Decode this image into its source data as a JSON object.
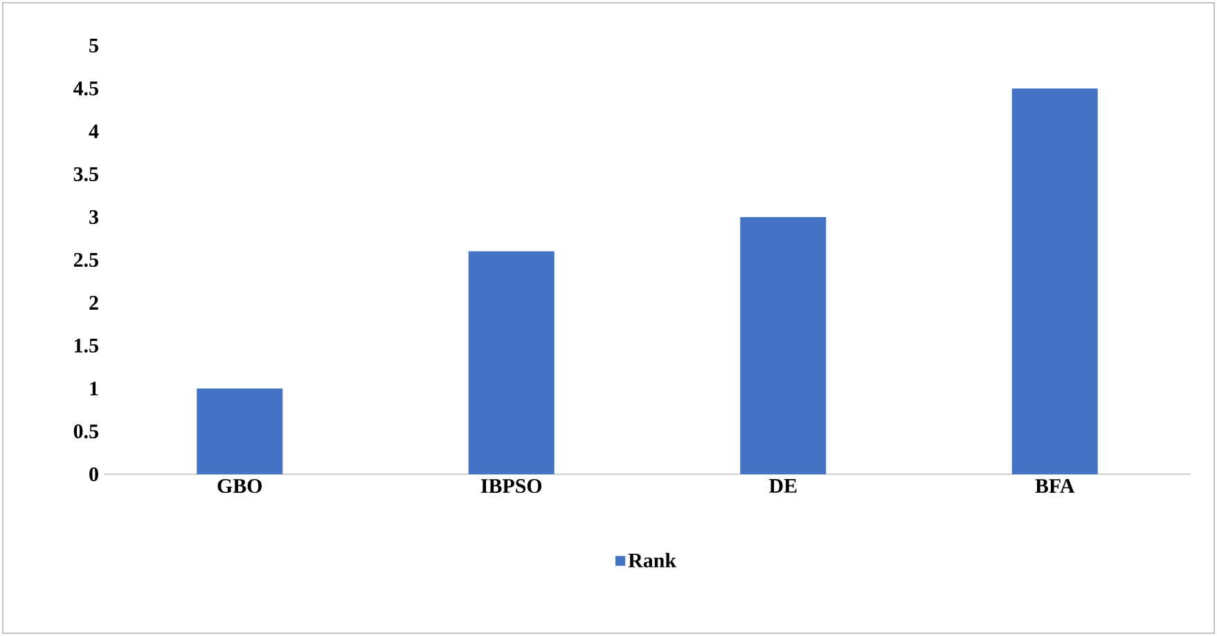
{
  "chart_data": {
    "type": "bar",
    "categories": [
      "GBO",
      "IBPSO",
      "DE",
      "BFA"
    ],
    "series": [
      {
        "name": "Rank",
        "color": "#4472c4",
        "values": [
          1,
          2.6,
          3,
          4.5
        ]
      }
    ],
    "ylim": [
      0,
      5
    ],
    "yticks": [
      0,
      0.5,
      1,
      1.5,
      2,
      2.5,
      3,
      3.5,
      4,
      4.5,
      5
    ],
    "legend": "bottom"
  }
}
